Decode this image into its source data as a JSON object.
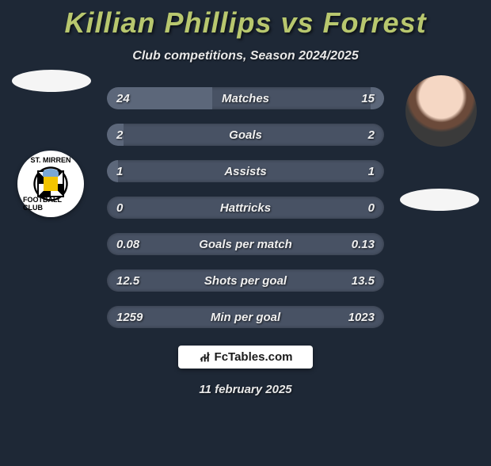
{
  "title": "Killian Phillips vs Forrest",
  "subtitle": "Club competitions, Season 2024/2025",
  "date": "11 february 2025",
  "brand": {
    "text": "FcTables.com"
  },
  "colors": {
    "background": "#1e2836",
    "title": "#b8c76e",
    "row_bg": "#485264",
    "row_fill": "#5c677a",
    "text": "#f0f0f0",
    "brand_bg": "#ffffff",
    "brand_text": "#1a1a1a"
  },
  "stat_rows": [
    {
      "label": "Matches",
      "left": "24",
      "right": "15",
      "left_pct": 38,
      "right_pct": 5
    },
    {
      "label": "Goals",
      "left": "2",
      "right": "2",
      "left_pct": 6,
      "right_pct": 0
    },
    {
      "label": "Assists",
      "left": "1",
      "right": "1",
      "left_pct": 4,
      "right_pct": 0
    },
    {
      "label": "Hattricks",
      "left": "0",
      "right": "0",
      "left_pct": 0,
      "right_pct": 0
    },
    {
      "label": "Goals per match",
      "left": "0.08",
      "right": "0.13",
      "left_pct": 0,
      "right_pct": 0
    },
    {
      "label": "Shots per goal",
      "left": "12.5",
      "right": "13.5",
      "left_pct": 0,
      "right_pct": 0
    },
    {
      "label": "Min per goal",
      "left": "1259",
      "right": "1023",
      "left_pct": 0,
      "right_pct": 0
    }
  ],
  "badge": {
    "ring_top": "ST. MIRREN",
    "ring_bottom": "FOOTBALL CLUB"
  }
}
